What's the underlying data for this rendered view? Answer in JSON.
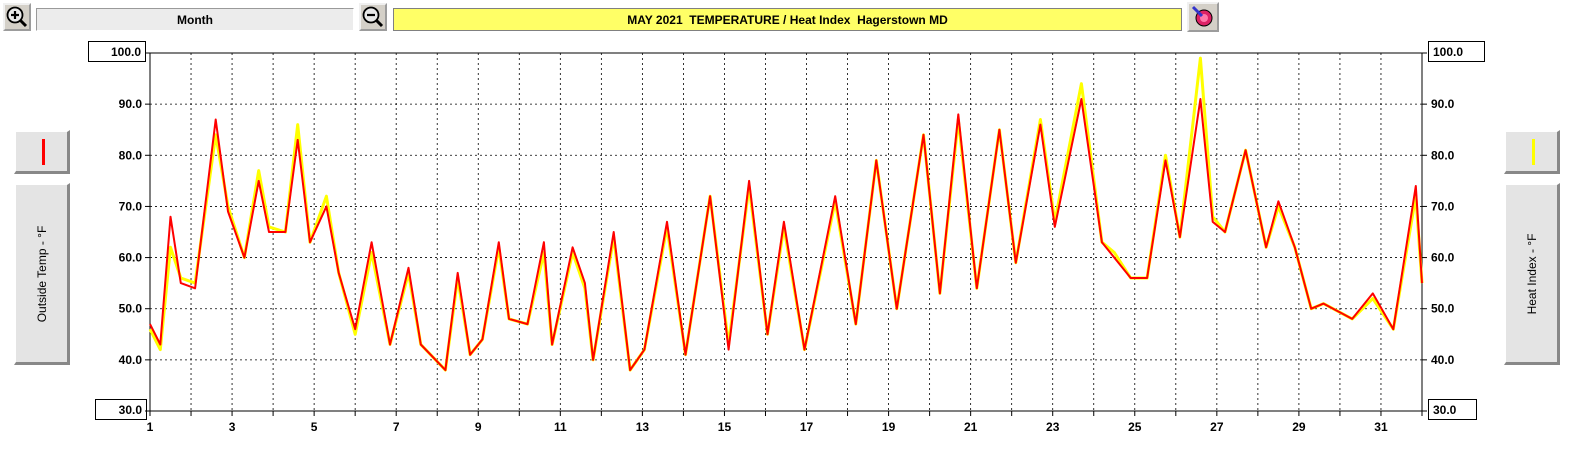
{
  "toolbar": {
    "zoom_in_icon": "zoom-in-magnifier",
    "period_label": "Month",
    "zoom_out_icon": "zoom-out-magnifier",
    "title": "MAY 2021  TEMPERATURE / Heat Index  Hagerstown MD",
    "title_bg": "#ffff66",
    "color_picker_icon": "paint-tool"
  },
  "left_axis": {
    "max_box": "100.0",
    "min_box": "30.0",
    "label": "Outside Temp - °F",
    "legend_color": "#ff0000"
  },
  "right_axis": {
    "max_box": "100.0",
    "min_box": "30.0",
    "label": "Heat Index - °F",
    "legend_color": "#ffff00"
  },
  "chart_data": {
    "type": "line",
    "title": "MAY 2021  TEMPERATURE / Heat Index  Hagerstown MD",
    "xlabel": "",
    "ylabel": "Outside Temp - °F",
    "y2label": "Heat Index - °F",
    "xlim": [
      1,
      32
    ],
    "ylim": [
      30,
      100
    ],
    "y_ticks": [
      "30.0",
      "40.0",
      "50.0",
      "60.0",
      "70.0",
      "80.0",
      "90.0",
      "100.0"
    ],
    "x_ticks": [
      "1",
      "3",
      "5",
      "7",
      "9",
      "11",
      "13",
      "15",
      "17",
      "19",
      "21",
      "23",
      "25",
      "27",
      "29",
      "31"
    ],
    "grid": true,
    "series": [
      {
        "name": "Heat Index - °F",
        "color": "#ffff00",
        "x": [
          1.0,
          1.25,
          1.5,
          1.75,
          2.1,
          2.6,
          2.9,
          3.3,
          3.65,
          3.9,
          4.3,
          4.6,
          4.9,
          5.3,
          5.6,
          6.0,
          6.4,
          6.85,
          7.3,
          7.6,
          8.2,
          8.5,
          8.8,
          9.1,
          9.5,
          9.75,
          10.2,
          10.6,
          10.8,
          11.3,
          11.6,
          11.8,
          12.3,
          12.7,
          13.05,
          13.6,
          14.05,
          14.65,
          15.1,
          15.6,
          16.05,
          16.45,
          16.95,
          17.7,
          18.2,
          18.7,
          19.2,
          19.85,
          20.25,
          20.7,
          21.15,
          21.7,
          22.1,
          22.7,
          23.05,
          23.7,
          24.2,
          24.5,
          24.9,
          25.3,
          25.75,
          26.1,
          26.6,
          26.9,
          27.2,
          27.7,
          28.2,
          28.5,
          28.9,
          29.3,
          29.6,
          30.3,
          30.8,
          31.3,
          31.85,
          32.0
        ],
        "y": [
          46,
          42,
          62,
          56,
          55,
          84,
          70,
          60,
          77,
          66,
          65,
          86,
          63,
          72,
          57,
          45,
          61,
          43,
          57,
          43,
          38,
          56,
          41,
          44,
          62,
          48,
          47,
          61,
          43,
          61,
          54,
          40,
          64,
          38,
          42,
          66,
          41,
          72,
          43,
          74,
          45,
          66,
          42,
          71,
          47,
          79,
          50,
          84,
          53,
          87,
          54,
          85,
          59,
          87,
          67,
          94,
          63,
          61,
          56,
          56,
          80,
          64,
          99,
          68,
          65,
          81,
          62,
          70,
          62,
          50,
          51,
          48,
          52,
          46,
          72,
          55
        ]
      },
      {
        "name": "Outside Temp - °F",
        "color": "#ff0000",
        "x": [
          1.0,
          1.25,
          1.5,
          1.75,
          2.1,
          2.6,
          2.9,
          3.3,
          3.65,
          3.9,
          4.3,
          4.6,
          4.9,
          5.3,
          5.6,
          6.0,
          6.4,
          6.85,
          7.3,
          7.6,
          8.2,
          8.5,
          8.8,
          9.1,
          9.5,
          9.75,
          10.2,
          10.6,
          10.8,
          11.3,
          11.6,
          11.8,
          12.3,
          12.7,
          13.05,
          13.6,
          14.05,
          14.65,
          15.1,
          15.6,
          16.05,
          16.45,
          16.95,
          17.7,
          18.2,
          18.7,
          19.2,
          19.85,
          20.25,
          20.7,
          21.15,
          21.7,
          22.1,
          22.7,
          23.05,
          23.7,
          24.2,
          24.5,
          24.9,
          25.3,
          25.75,
          26.1,
          26.6,
          26.9,
          27.2,
          27.7,
          28.2,
          28.5,
          28.9,
          29.3,
          29.6,
          30.3,
          30.8,
          31.3,
          31.85,
          32.0
        ],
        "y": [
          47,
          43,
          68,
          55,
          54,
          87,
          69,
          60,
          75,
          65,
          65,
          83,
          63,
          70,
          57,
          46,
          63,
          43,
          58,
          43,
          38,
          57,
          41,
          44,
          63,
          48,
          47,
          63,
          43,
          62,
          55,
          40,
          65,
          38,
          42,
          67,
          41,
          72,
          42,
          75,
          45,
          67,
          42,
          72,
          47,
          79,
          50,
          84,
          53,
          88,
          54,
          85,
          59,
          86,
          66,
          91,
          63,
          60,
          56,
          56,
          79,
          64,
          91,
          67,
          65,
          81,
          62,
          71,
          62,
          50,
          51,
          48,
          53,
          46,
          74,
          55
        ]
      }
    ]
  }
}
